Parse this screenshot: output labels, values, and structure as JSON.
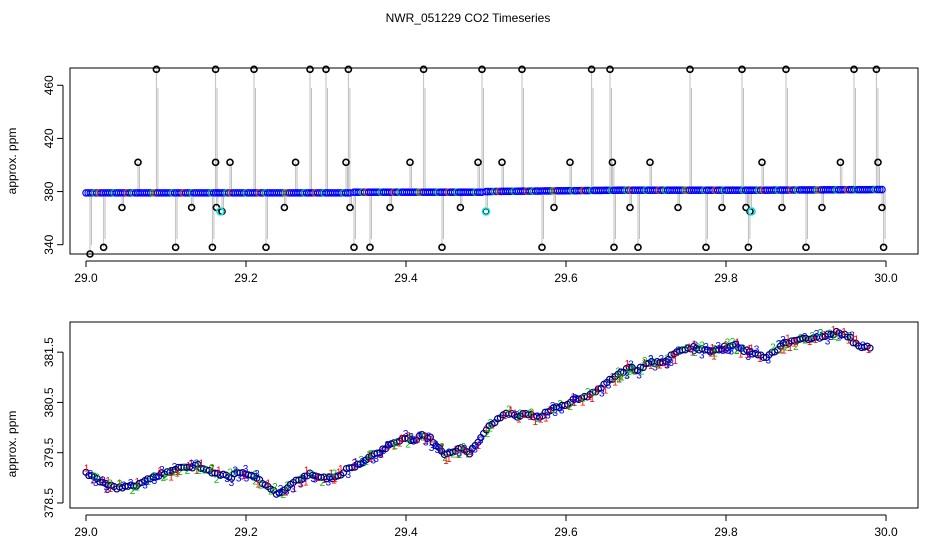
{
  "title": "NWR_051229  CO2 Timeseries",
  "chart_data": [
    {
      "type": "scatter",
      "title": "NWR_051229  CO2 Timeseries",
      "xlabel": "",
      "ylabel": "approx. ppm",
      "xlim": [
        28.98,
        30.04
      ],
      "ylim": [
        333,
        473
      ],
      "xticks": [
        "29.0",
        "29.2",
        "29.4",
        "29.6",
        "29.8",
        "30.0"
      ],
      "xtick_values": [
        29.0,
        29.2,
        29.4,
        29.6,
        29.8,
        30.0
      ],
      "yticks": [
        "340",
        "380",
        "420",
        "460"
      ],
      "ytick_values": [
        340,
        380,
        420,
        460
      ],
      "grid": false,
      "colors": {
        "main": "#0000ff",
        "outlier": "#000000",
        "cal": "#00e5e5",
        "line": "#808080"
      },
      "baseline_segments": [
        {
          "x": [
            29.0,
            29.165
          ],
          "y": [
            379.0,
            379.0
          ]
        },
        {
          "x": [
            29.165,
            29.33
          ],
          "y": [
            379.0,
            379.0
          ]
        },
        {
          "x": [
            29.335,
            29.495
          ],
          "y": [
            379.5,
            379.5
          ]
        },
        {
          "x": [
            29.5,
            29.665
          ],
          "y": [
            380.0,
            381.0
          ]
        },
        {
          "x": [
            29.665,
            29.83
          ],
          "y": [
            381.0,
            381.0
          ]
        },
        {
          "x": [
            29.83,
            29.995
          ],
          "y": [
            381.0,
            381.5
          ]
        }
      ],
      "outliers": {
        "x": [
          29.005,
          29.022,
          29.045,
          29.065,
          29.088,
          29.112,
          29.132,
          29.158,
          29.162,
          29.162,
          29.163,
          29.17,
          29.18,
          29.21,
          29.225,
          29.248,
          29.262,
          29.28,
          29.3,
          29.325,
          29.328,
          29.33,
          29.335,
          29.355,
          29.38,
          29.405,
          29.422,
          29.445,
          29.468,
          29.49,
          29.495,
          29.5,
          29.52,
          29.545,
          29.57,
          29.585,
          29.605,
          29.632,
          29.655,
          29.658,
          29.66,
          29.68,
          29.69,
          29.705,
          29.74,
          29.755,
          29.775,
          29.795,
          29.82,
          29.825,
          29.828,
          29.83,
          29.845,
          29.87,
          29.875,
          29.9,
          29.92,
          29.943,
          29.96,
          29.988,
          29.99,
          29.995,
          29.997
        ],
        "y": [
          333,
          338,
          368,
          402,
          472,
          338,
          368,
          338,
          402,
          472,
          368,
          365,
          402,
          472,
          338,
          368,
          402,
          472,
          472,
          402,
          472,
          368,
          338,
          338,
          368,
          402,
          472,
          338,
          368,
          402,
          472,
          365,
          402,
          472,
          338,
          368,
          402,
          472,
          472,
          402,
          338,
          368,
          338,
          402,
          368,
          472,
          338,
          368,
          472,
          368,
          338,
          365,
          402,
          368,
          472,
          338,
          368,
          402,
          472,
          472,
          402,
          368,
          338
        ]
      },
      "cal_points": {
        "x": [
          29.168,
          29.5,
          29.832
        ],
        "y": [
          365,
          365,
          365
        ]
      }
    },
    {
      "type": "scatter",
      "xlabel": "",
      "ylabel": "approx. ppm",
      "xlim": [
        28.98,
        30.04
      ],
      "ylim": [
        378.4,
        382.1
      ],
      "xticks": [
        "29.0",
        "29.2",
        "29.4",
        "29.6",
        "29.8",
        "30.0"
      ],
      "xtick_values": [
        29.0,
        29.2,
        29.4,
        29.6,
        29.8,
        30.0
      ],
      "yticks": [
        "378.5",
        "379.5",
        "380.5",
        "381.5"
      ],
      "ytick_values": [
        378.5,
        379.5,
        380.5,
        381.5
      ],
      "grid": false,
      "symbols": [
        "1",
        "2",
        "3",
        "o"
      ],
      "colors": {
        "line1": "#ff0000",
        "line2": "#00c000",
        "line3": "#0000ff",
        "mean": "#000080"
      },
      "series": [
        {
          "symbol": "o",
          "x": [
            29.0,
            29.01,
            29.02,
            29.03,
            29.04,
            29.05,
            29.06,
            29.07,
            29.08,
            29.09,
            29.1,
            29.11,
            29.12,
            29.13,
            29.14,
            29.15,
            29.16,
            29.17,
            29.18,
            29.19,
            29.2,
            29.21,
            29.22,
            29.23,
            29.24,
            29.25,
            29.26,
            29.27,
            29.28,
            29.29,
            29.3,
            29.31,
            29.32,
            29.33,
            29.34,
            29.35,
            29.36,
            29.37,
            29.38,
            29.39,
            29.4,
            29.41,
            29.42,
            29.43,
            29.44,
            29.45,
            29.46,
            29.47,
            29.48,
            29.49,
            29.5,
            29.51,
            29.52,
            29.53,
            29.54,
            29.55,
            29.56,
            29.57,
            29.58,
            29.59,
            29.6,
            29.61,
            29.62,
            29.63,
            29.64,
            29.65,
            29.66,
            29.67,
            29.68,
            29.69,
            29.7,
            29.71,
            29.72,
            29.73,
            29.74,
            29.75,
            29.76,
            29.77,
            29.78,
            29.79,
            29.8,
            29.81,
            29.82,
            29.83,
            29.84,
            29.85,
            29.86,
            29.87,
            29.88,
            29.89,
            29.9,
            29.91,
            29.92,
            29.93,
            29.94,
            29.95,
            29.96,
            29.97,
            29.98
          ],
          "y": [
            379.1,
            379.0,
            378.9,
            378.85,
            378.8,
            378.85,
            378.85,
            378.9,
            379.0,
            379.05,
            379.1,
            379.15,
            379.2,
            379.2,
            379.25,
            379.15,
            379.1,
            379.05,
            379.0,
            379.1,
            379.1,
            379.05,
            378.9,
            378.8,
            378.65,
            378.8,
            378.9,
            379.0,
            379.1,
            379.0,
            379.0,
            379.0,
            379.1,
            379.2,
            379.25,
            379.35,
            379.45,
            379.55,
            379.65,
            379.75,
            379.8,
            379.75,
            379.85,
            379.8,
            379.6,
            379.45,
            379.5,
            379.6,
            379.5,
            379.7,
            379.95,
            380.1,
            380.25,
            380.3,
            380.2,
            380.3,
            380.2,
            380.25,
            380.35,
            380.4,
            380.45,
            380.55,
            380.6,
            380.65,
            380.75,
            380.9,
            381.0,
            381.1,
            381.2,
            381.15,
            381.25,
            381.3,
            381.3,
            381.4,
            381.5,
            381.55,
            381.6,
            381.55,
            381.5,
            381.55,
            381.6,
            381.65,
            381.55,
            381.5,
            381.45,
            381.4,
            381.5,
            381.65,
            381.7,
            381.75,
            381.75,
            381.8,
            381.8,
            381.85,
            381.9,
            381.85,
            381.7,
            381.6,
            381.6
          ]
        }
      ]
    }
  ]
}
